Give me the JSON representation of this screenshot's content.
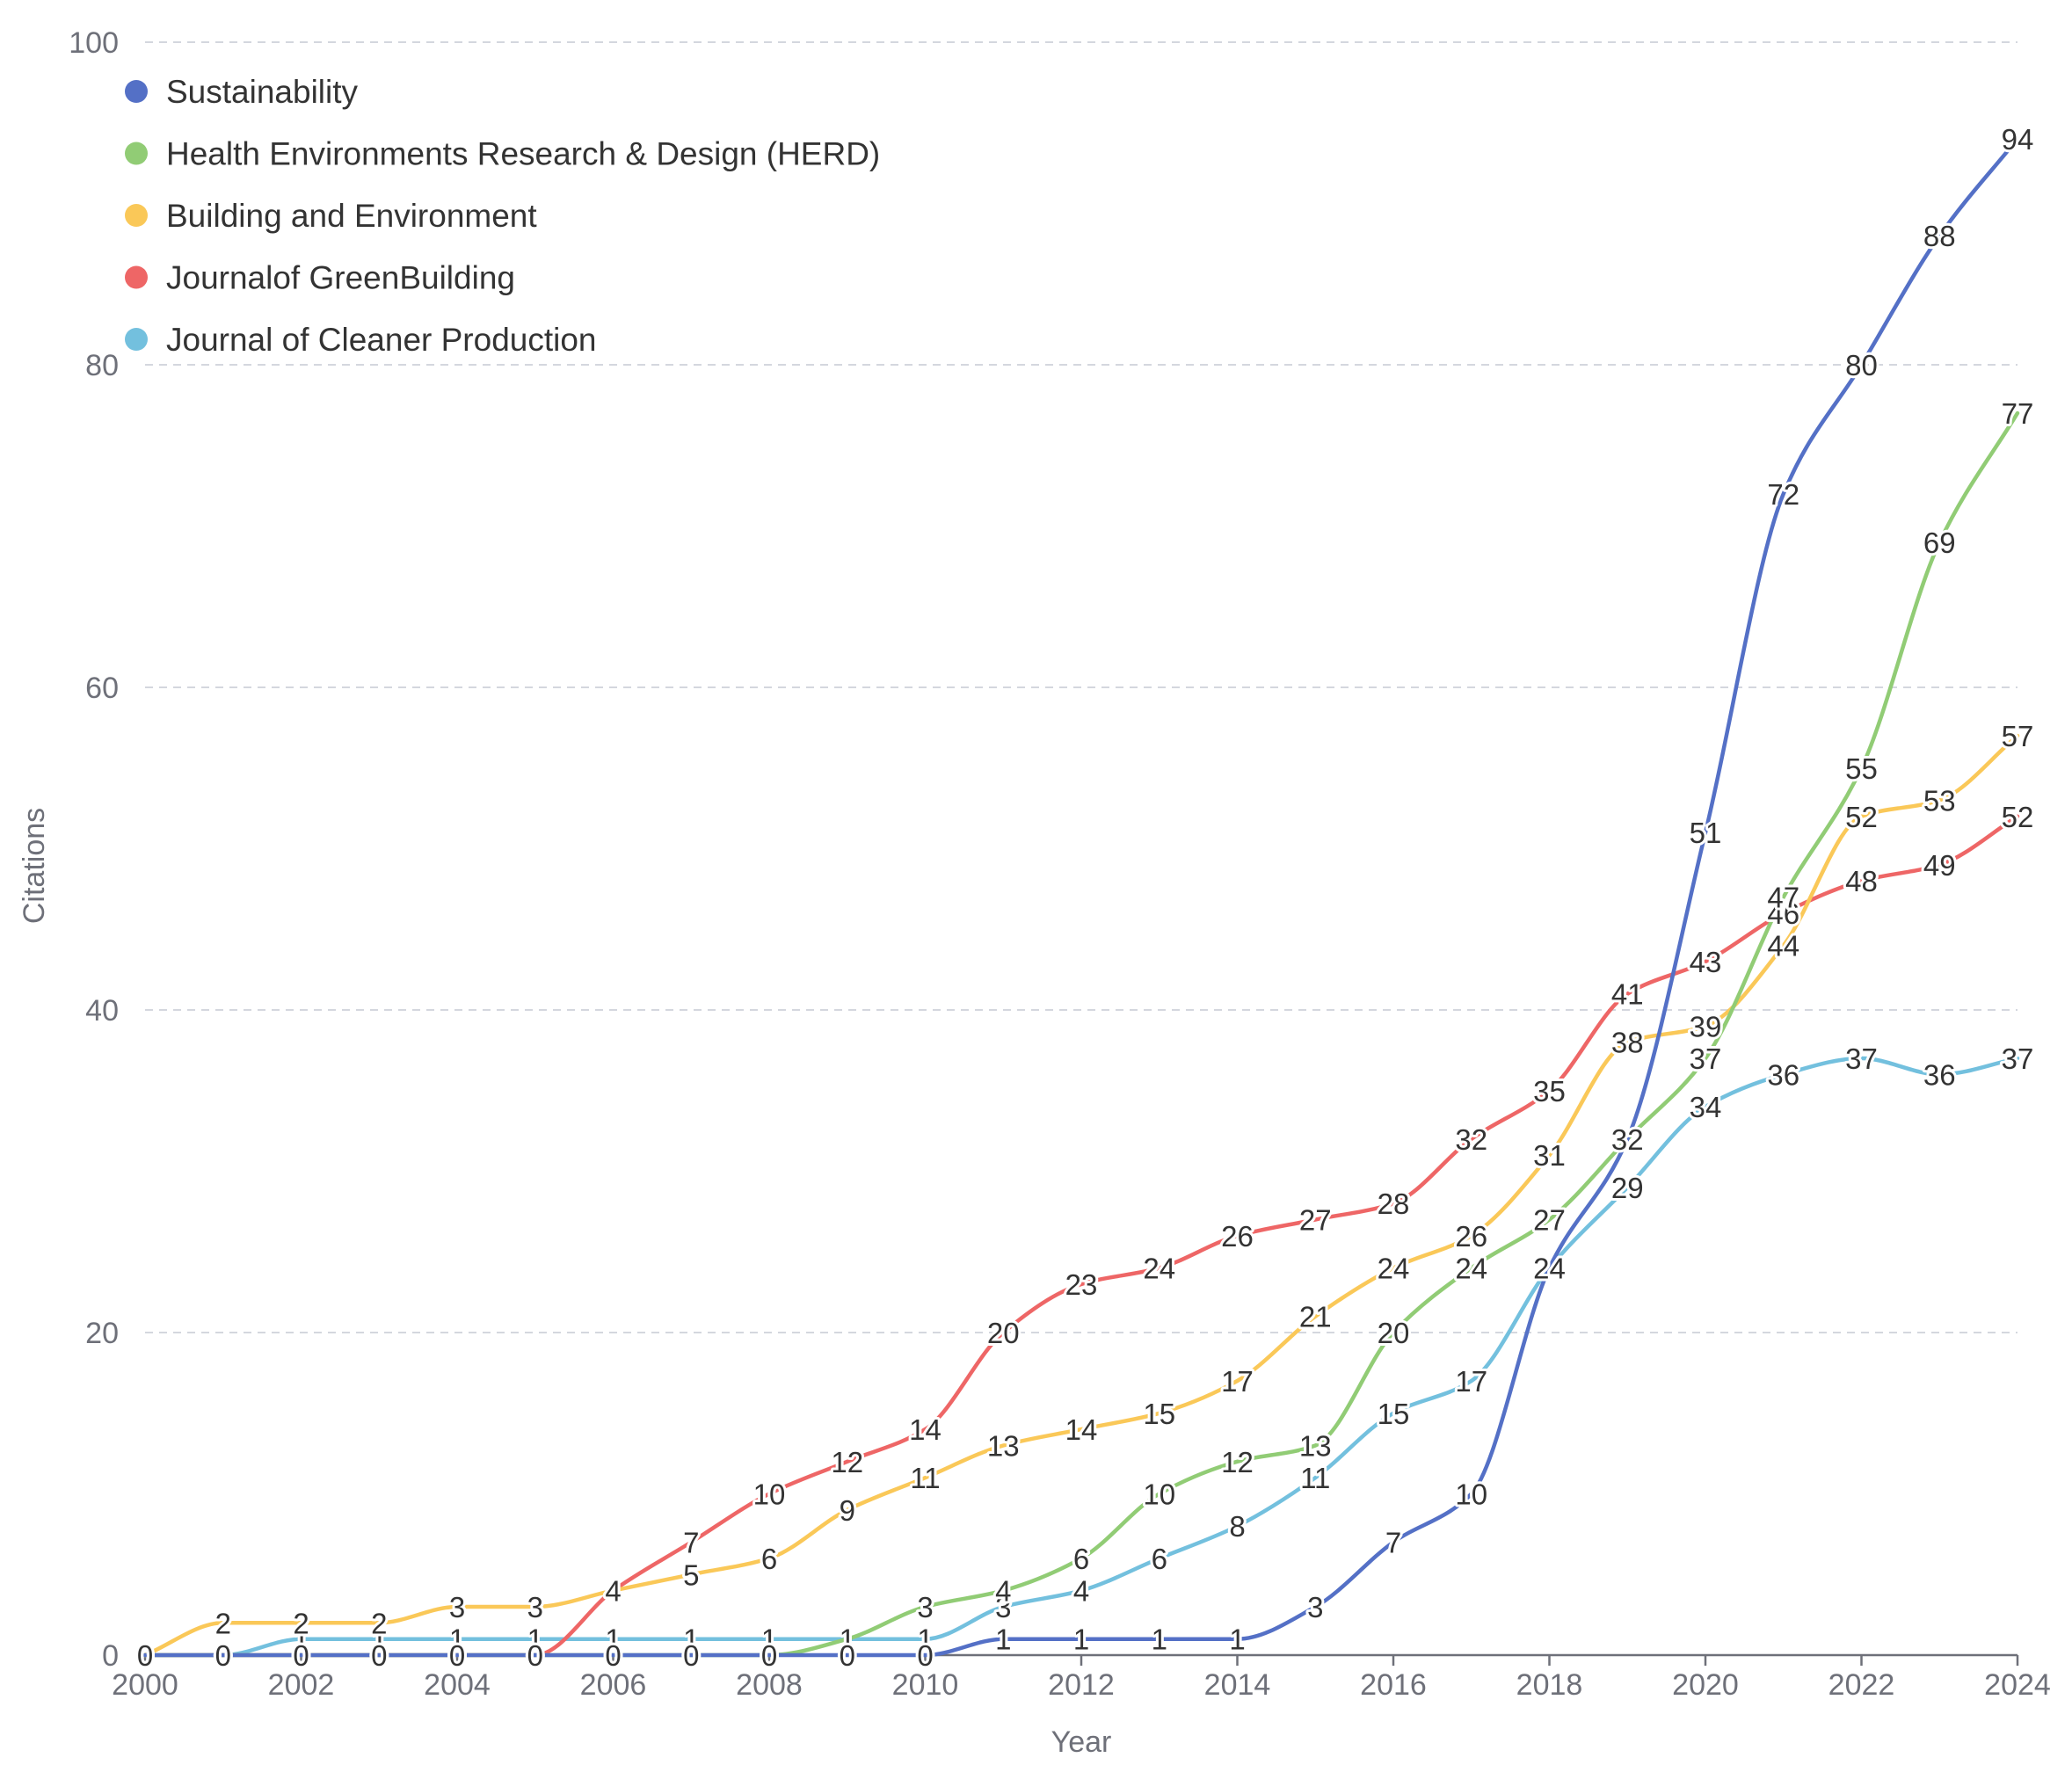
{
  "chart_data": {
    "type": "line",
    "title": "",
    "xlabel": "Year",
    "ylabel": "Citations",
    "xlim": [
      2000,
      2024
    ],
    "ylim": [
      0,
      100
    ],
    "xticks": [
      "2000",
      "2002",
      "2004",
      "2006",
      "2008",
      "2010",
      "2012",
      "2014",
      "2016",
      "2018",
      "2020",
      "2022",
      "2024"
    ],
    "yticks": [
      "0",
      "20",
      "40",
      "60",
      "80",
      "100"
    ],
    "grid": true,
    "legend_position": "top-left",
    "x": [
      2000,
      2001,
      2002,
      2003,
      2004,
      2005,
      2006,
      2007,
      2008,
      2009,
      2010,
      2011,
      2012,
      2013,
      2014,
      2015,
      2016,
      2017,
      2018,
      2019,
      2020,
      2021,
      2022,
      2023,
      2024
    ],
    "series": [
      {
        "name": "Sustainability",
        "color": "#5470c6",
        "values": [
          0,
          0,
          0,
          0,
          0,
          0,
          0,
          0,
          0,
          0,
          0,
          1,
          1,
          1,
          1,
          3,
          7,
          10,
          24,
          32,
          51,
          72,
          80,
          88,
          94
        ]
      },
      {
        "name": "Health Environments Research & Design (HERD)",
        "color": "#91cc75",
        "values": [
          0,
          0,
          0,
          0,
          0,
          0,
          0,
          0,
          0,
          1,
          3,
          4,
          6,
          10,
          12,
          13,
          20,
          24,
          27,
          32,
          37,
          47,
          55,
          69,
          77
        ]
      },
      {
        "name": "Building and Environment",
        "color": "#fac858",
        "values": [
          0,
          2,
          2,
          2,
          3,
          3,
          4,
          5,
          6,
          9,
          11,
          13,
          14,
          15,
          17,
          21,
          24,
          26,
          31,
          38,
          39,
          44,
          52,
          53,
          57
        ]
      },
      {
        "name": "Journalof GreenBuilding",
        "color": "#ee6666",
        "values": [
          0,
          0,
          0,
          0,
          0,
          0,
          4,
          7,
          10,
          12,
          14,
          20,
          23,
          24,
          26,
          27,
          28,
          32,
          35,
          41,
          43,
          46,
          48,
          49,
          52
        ]
      },
      {
        "name": "Journal of Cleaner Production",
        "color": "#73c0de",
        "values": [
          0,
          0,
          1,
          1,
          1,
          1,
          1,
          1,
          1,
          1,
          1,
          3,
          4,
          6,
          8,
          11,
          15,
          17,
          24,
          29,
          34,
          36,
          37,
          36,
          37
        ]
      }
    ]
  }
}
